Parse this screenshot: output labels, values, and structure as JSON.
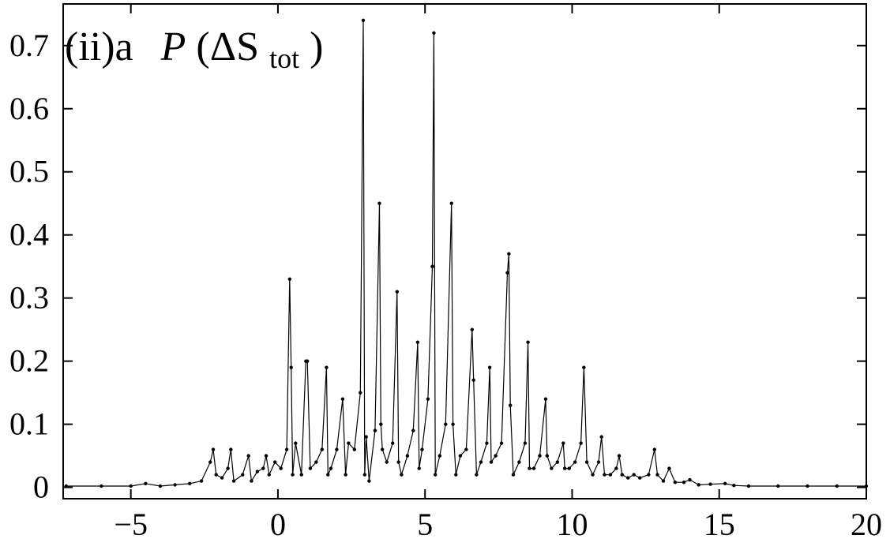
{
  "chart_data": {
    "type": "line",
    "title_parts": [
      "(ii)a",
      "P",
      "(ΔS",
      "tot",
      ")"
    ],
    "color": "#000000",
    "markers": true,
    "xlim": [
      -7.3,
      20
    ],
    "ylim": [
      -0.018,
      0.766
    ],
    "xticks": [
      {
        "value": -5,
        "label": "−5"
      },
      0,
      5,
      10,
      15,
      20
    ],
    "yticks": [
      0,
      0.1,
      0.2,
      0.3,
      0.4,
      0.5,
      0.6,
      0.7
    ],
    "x": [
      -7.2,
      -6,
      -5,
      -4.5,
      -4,
      -3.5,
      -3,
      -2.6,
      -2.3,
      -2.2,
      -2.1,
      -1.9,
      -1.7,
      -1.6,
      -1.5,
      -1.2,
      -1.0,
      -0.9,
      -0.7,
      -0.5,
      -0.4,
      -0.3,
      -0.1,
      0.1,
      0.3,
      0.4,
      0.45,
      0.5,
      0.6,
      0.8,
      0.95,
      1.0,
      1.1,
      1.3,
      1.5,
      1.65,
      1.7,
      1.8,
      2.0,
      2.2,
      2.3,
      2.4,
      2.6,
      2.8,
      2.9,
      2.95,
      3.0,
      3.1,
      3.3,
      3.45,
      3.5,
      3.55,
      3.7,
      3.9,
      4.05,
      4.1,
      4.2,
      4.4,
      4.6,
      4.75,
      4.8,
      4.9,
      5.1,
      5.25,
      5.3,
      5.35,
      5.5,
      5.7,
      5.9,
      5.95,
      6.05,
      6.2,
      6.4,
      6.6,
      6.65,
      6.75,
      6.9,
      7.1,
      7.2,
      7.25,
      7.4,
      7.6,
      7.8,
      7.85,
      7.9,
      8.0,
      8.2,
      8.4,
      8.5,
      8.55,
      8.7,
      8.9,
      9.1,
      9.15,
      9.3,
      9.5,
      9.7,
      9.75,
      9.9,
      10.1,
      10.3,
      10.4,
      10.5,
      10.7,
      10.9,
      11.0,
      11.1,
      11.3,
      11.5,
      11.6,
      11.7,
      11.9,
      12.1,
      12.3,
      12.6,
      12.8,
      12.9,
      13.1,
      13.3,
      13.5,
      13.8,
      14.0,
      14.3,
      14.7,
      15.2,
      15.5,
      16,
      17,
      18,
      19,
      20
    ],
    "values": [
      0.002,
      0.002,
      0.002,
      0.006,
      0.002,
      0.004,
      0.006,
      0.01,
      0.04,
      0.06,
      0.02,
      0.015,
      0.03,
      0.06,
      0.01,
      0.02,
      0.05,
      0.01,
      0.025,
      0.03,
      0.05,
      0.02,
      0.04,
      0.03,
      0.06,
      0.33,
      0.19,
      0.02,
      0.07,
      0.02,
      0.2,
      0.2,
      0.03,
      0.04,
      0.06,
      0.19,
      0.02,
      0.03,
      0.06,
      0.14,
      0.02,
      0.07,
      0.06,
      0.15,
      0.74,
      0.02,
      0.08,
      0.01,
      0.09,
      0.45,
      0.1,
      0.06,
      0.04,
      0.07,
      0.31,
      0.04,
      0.02,
      0.05,
      0.09,
      0.23,
      0.03,
      0.06,
      0.14,
      0.35,
      0.72,
      0.02,
      0.05,
      0.1,
      0.45,
      0.1,
      0.02,
      0.05,
      0.06,
      0.25,
      0.17,
      0.02,
      0.04,
      0.07,
      0.19,
      0.04,
      0.05,
      0.07,
      0.34,
      0.37,
      0.13,
      0.02,
      0.04,
      0.07,
      0.23,
      0.03,
      0.03,
      0.05,
      0.14,
      0.05,
      0.03,
      0.04,
      0.07,
      0.03,
      0.03,
      0.04,
      0.07,
      0.19,
      0.04,
      0.02,
      0.04,
      0.08,
      0.02,
      0.02,
      0.03,
      0.05,
      0.02,
      0.015,
      0.02,
      0.015,
      0.02,
      0.06,
      0.02,
      0.01,
      0.03,
      0.008,
      0.008,
      0.012,
      0.004,
      0.005,
      0.006,
      0.003,
      0.002,
      0.002,
      0.002,
      0.002,
      0.002
    ]
  }
}
